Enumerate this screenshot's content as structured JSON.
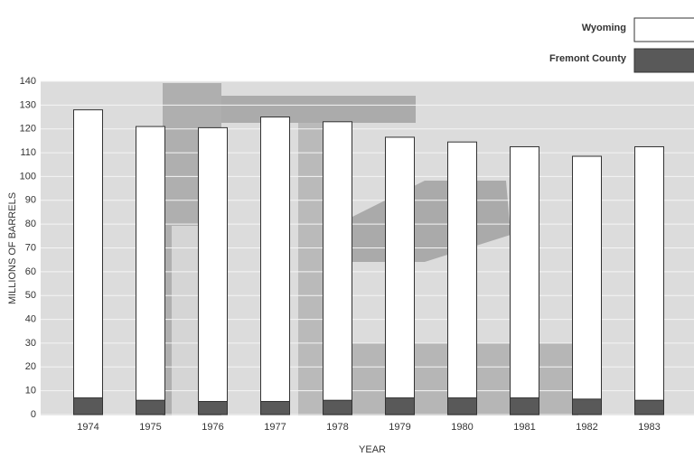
{
  "chart_data": {
    "type": "bar",
    "y_label": "MILLIONS OF BARRELS",
    "x_label": "YEAR",
    "categories": [
      "1974",
      "1975",
      "1976",
      "1977",
      "1978",
      "1979",
      "1980",
      "1981",
      "1982",
      "1983"
    ],
    "series": [
      {
        "name": "Wyoming",
        "color": "#ffffff",
        "values": [
          128,
          121,
          120.5,
          125,
          123,
          116.5,
          114.5,
          112.5,
          108.5,
          112.5
        ]
      },
      {
        "name": "Fremont County",
        "color": "#595959",
        "values": [
          7,
          6,
          5.5,
          5.5,
          6,
          7,
          7,
          7,
          6.5,
          6
        ]
      }
    ],
    "ylim": [
      0,
      140
    ],
    "yticks": [
      0,
      10,
      20,
      30,
      40,
      50,
      60,
      70,
      80,
      90,
      100,
      110,
      120,
      130,
      140
    ],
    "grid": true,
    "legend": "upper right"
  }
}
